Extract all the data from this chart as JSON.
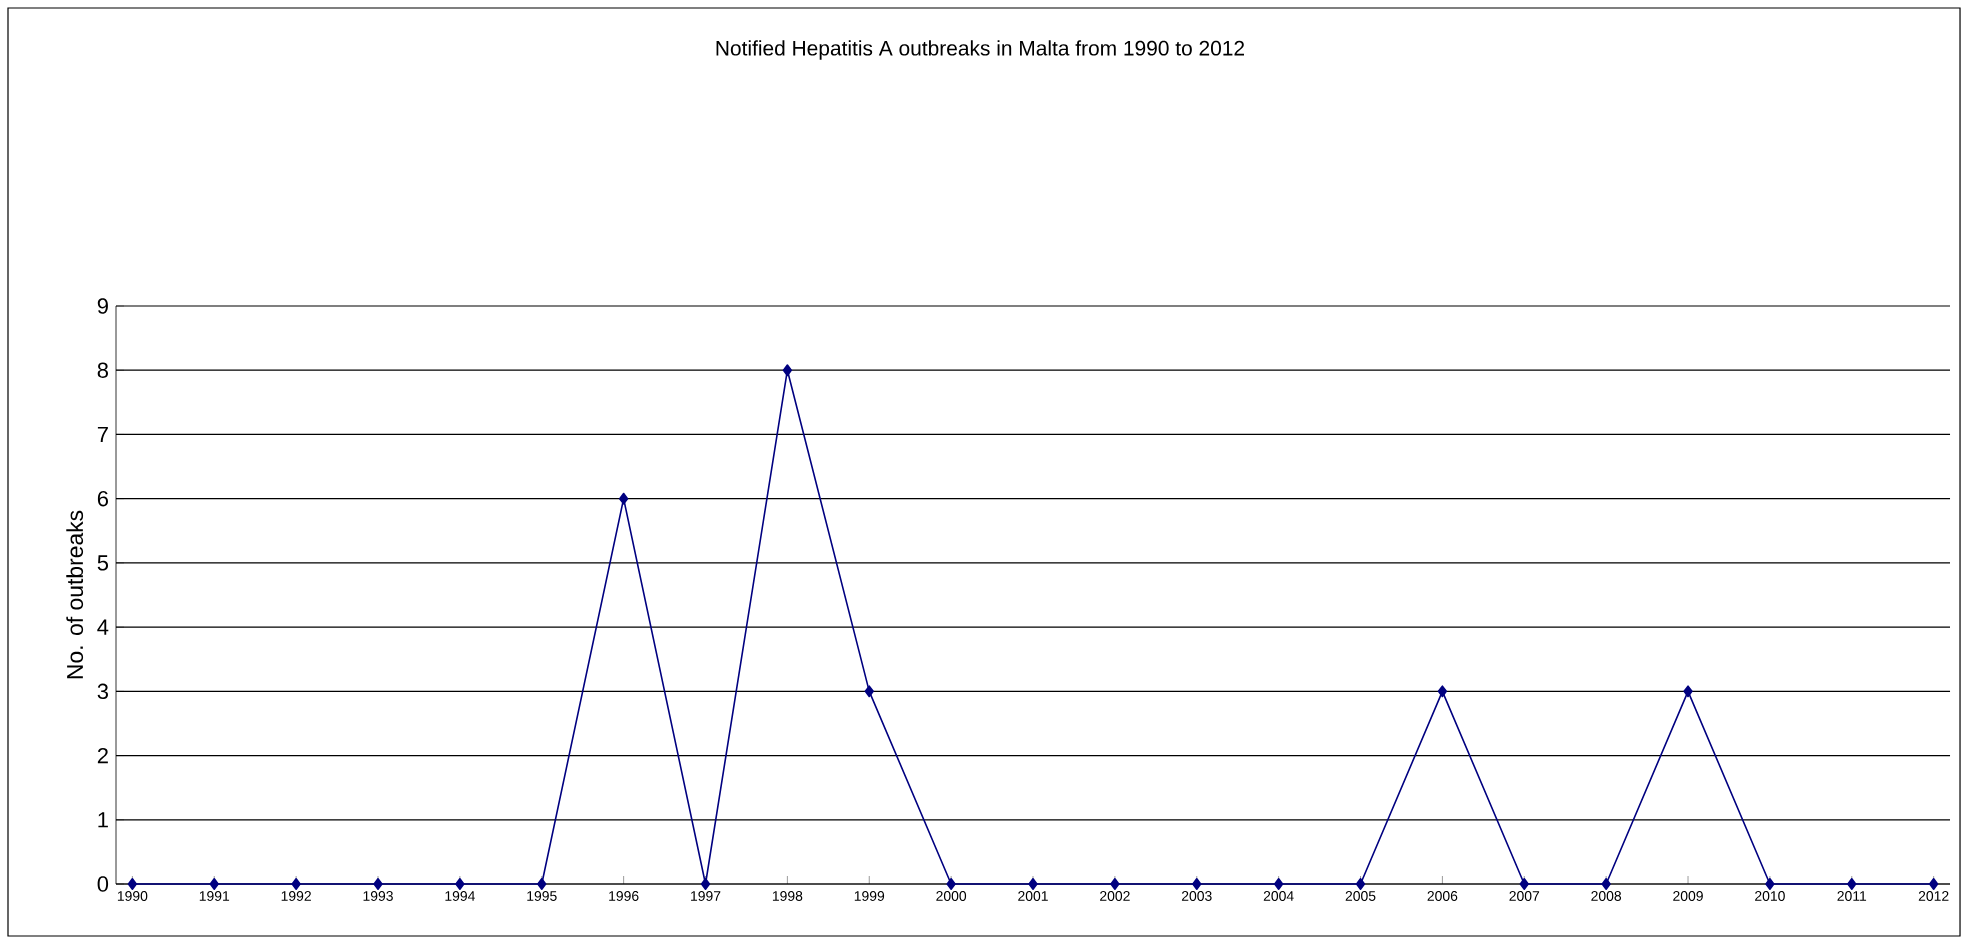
{
  "chart_data": {
    "type": "line",
    "title": "Notified Hepatitis A outbreaks in Malta from 1990 to 2012",
    "ylabel": "No. of outbreaks",
    "categories": [
      "1990",
      "1991",
      "1992",
      "1993",
      "1994",
      "1995",
      "1996",
      "1997",
      "1998",
      "1999",
      "2000",
      "2001",
      "2002",
      "2003",
      "2004",
      "2005",
      "2006",
      "2007",
      "2008",
      "2009",
      "2010",
      "2011",
      "2012"
    ],
    "series": [
      {
        "color": "#000080",
        "values": [
          0,
          0,
          0,
          0,
          0,
          0,
          6,
          0,
          8,
          3,
          0,
          0,
          0,
          0,
          0,
          0,
          3,
          0,
          0,
          3,
          0,
          0,
          0
        ]
      }
    ],
    "ylim": [
      0,
      9
    ],
    "yticks": [
      0,
      1,
      2,
      3,
      4,
      5,
      6,
      7,
      8,
      9
    ],
    "grid": "y",
    "marker": "diamond",
    "line_style": "solid"
  }
}
